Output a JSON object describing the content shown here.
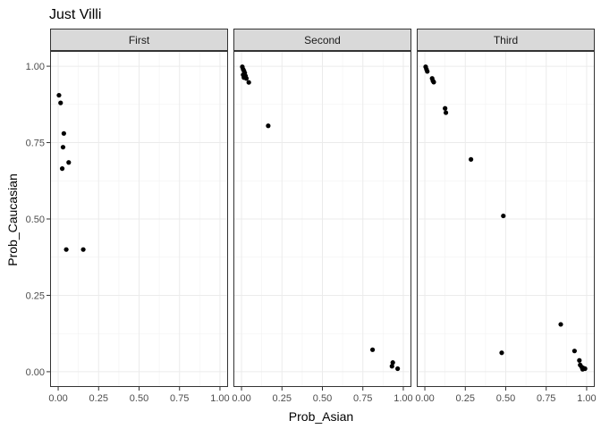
{
  "chart_data": {
    "type": "scatter",
    "title": "Just Villi",
    "xlabel": "Prob_Asian",
    "ylabel": "Prob_Caucasian",
    "xlim": [
      -0.05,
      1.05
    ],
    "ylim": [
      -0.05,
      1.05
    ],
    "x_ticks": [
      0,
      0.25,
      0.5,
      0.75,
      1
    ],
    "x_tick_labels": [
      "0.00",
      "0.25",
      "0.50",
      "0.75",
      "1.00"
    ],
    "y_ticks": [
      0,
      0.25,
      0.5,
      0.75,
      1
    ],
    "y_tick_labels": [
      "0.00",
      "0.25",
      "0.50",
      "0.75",
      "1.00"
    ],
    "grid": true,
    "point_color": "#000000",
    "panels": [
      {
        "name": "First",
        "points": [
          {
            "x": 0.005,
            "y": 0.905
          },
          {
            "x": 0.015,
            "y": 0.88
          },
          {
            "x": 0.035,
            "y": 0.78
          },
          {
            "x": 0.03,
            "y": 0.735
          },
          {
            "x": 0.065,
            "y": 0.685
          },
          {
            "x": 0.025,
            "y": 0.665
          },
          {
            "x": 0.05,
            "y": 0.4
          },
          {
            "x": 0.155,
            "y": 0.4
          }
        ]
      },
      {
        "name": "Second",
        "points": [
          {
            "x": 0.005,
            "y": 0.998
          },
          {
            "x": 0.01,
            "y": 0.99
          },
          {
            "x": 0.015,
            "y": 0.985
          },
          {
            "x": 0.02,
            "y": 0.978
          },
          {
            "x": 0.01,
            "y": 0.972
          },
          {
            "x": 0.025,
            "y": 0.968
          },
          {
            "x": 0.015,
            "y": 0.963
          },
          {
            "x": 0.03,
            "y": 0.96
          },
          {
            "x": 0.045,
            "y": 0.947
          },
          {
            "x": 0.165,
            "y": 0.805
          },
          {
            "x": 0.81,
            "y": 0.072
          },
          {
            "x": 0.935,
            "y": 0.03
          },
          {
            "x": 0.93,
            "y": 0.018
          },
          {
            "x": 0.965,
            "y": 0.01
          }
        ]
      },
      {
        "name": "Third",
        "points": [
          {
            "x": 0.005,
            "y": 0.998
          },
          {
            "x": 0.01,
            "y": 0.99
          },
          {
            "x": 0.015,
            "y": 0.983
          },
          {
            "x": 0.045,
            "y": 0.96
          },
          {
            "x": 0.05,
            "y": 0.952
          },
          {
            "x": 0.055,
            "y": 0.948
          },
          {
            "x": 0.125,
            "y": 0.862
          },
          {
            "x": 0.13,
            "y": 0.848
          },
          {
            "x": 0.285,
            "y": 0.695
          },
          {
            "x": 0.485,
            "y": 0.51
          },
          {
            "x": 0.84,
            "y": 0.155
          },
          {
            "x": 0.475,
            "y": 0.062
          },
          {
            "x": 0.925,
            "y": 0.068
          },
          {
            "x": 0.955,
            "y": 0.037
          },
          {
            "x": 0.96,
            "y": 0.022
          },
          {
            "x": 0.97,
            "y": 0.015
          },
          {
            "x": 0.98,
            "y": 0.012
          },
          {
            "x": 0.99,
            "y": 0.01
          },
          {
            "x": 0.975,
            "y": 0.008
          }
        ]
      }
    ]
  }
}
